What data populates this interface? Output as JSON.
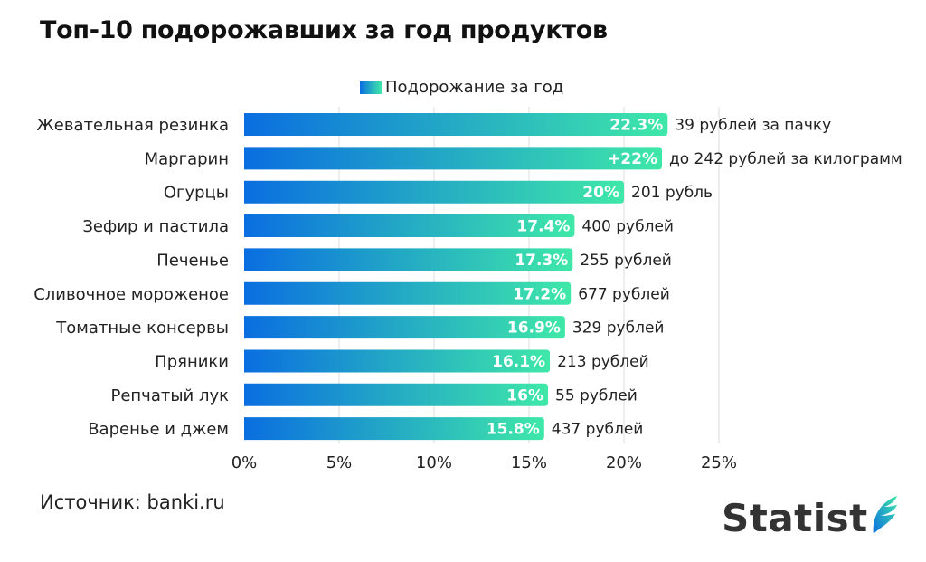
{
  "title": "Топ-10 подорожавших за год продуктов",
  "legend": {
    "label": "Подорожание за год"
  },
  "colors": {
    "bar_start": "#0a6ee0",
    "bar_end": "#3fe8a8",
    "grid": "#dddddd",
    "label_text": "#ffffff"
  },
  "source": "Источник: banki.ru",
  "logo": {
    "text": "Statist"
  },
  "chart_data": {
    "type": "bar",
    "orientation": "horizontal",
    "title": "Топ-10 подорожавших за год продуктов",
    "xlabel": "",
    "ylabel": "",
    "xlim": [
      0,
      25
    ],
    "x_ticks": [
      0,
      5,
      10,
      15,
      20,
      25
    ],
    "x_tick_labels": [
      "0%",
      "5%",
      "10%",
      "15%",
      "20%",
      "25%"
    ],
    "grid": true,
    "legend": {
      "entries": [
        "Подорожание за год"
      ],
      "placement": "top-center"
    },
    "categories": [
      "Жевательная резинка",
      "Маргарин",
      "Огурцы",
      "Зефир и пастила",
      "Печенье",
      "Сливочное мороженое",
      "Томатные консервы",
      "Пряники",
      "Репчатый лук",
      "Варенье и джем"
    ],
    "series": [
      {
        "name": "Подорожание за год",
        "values": [
          22.3,
          22,
          20,
          17.4,
          17.3,
          17.2,
          16.9,
          16.1,
          16,
          15.8
        ],
        "value_labels": [
          "22.3%",
          "+22%",
          "20%",
          "17.4%",
          "17.3%",
          "17.2%",
          "16.9%",
          "16.1%",
          "16%",
          "15.8%"
        ],
        "annotations": [
          "39 рублей за пачку",
          "до 242 рублей за килограмм",
          "201 рубль",
          "400 рублей",
          "255 рублей",
          "677 рублей",
          "329 рублей",
          "213 рублей",
          "55 рублей",
          "437 рублей"
        ]
      }
    ]
  }
}
